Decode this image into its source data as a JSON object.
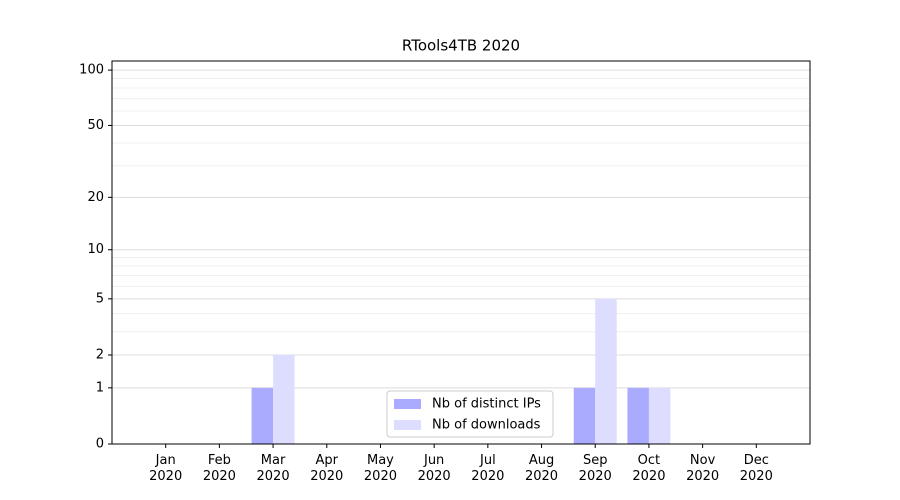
{
  "chart_data": {
    "type": "bar",
    "title": "RTools4TB 2020",
    "categories": [
      "Jan\n2020",
      "Feb\n2020",
      "Mar\n2020",
      "Apr\n2020",
      "May\n2020",
      "Jun\n2020",
      "Jul\n2020",
      "Aug\n2020",
      "Sep\n2020",
      "Oct\n2020",
      "Nov\n2020",
      "Dec\n2020"
    ],
    "series": [
      {
        "name": "Nb of distinct IPs",
        "color": "#aaaaff",
        "values": [
          0,
          0,
          1,
          0,
          0,
          0,
          0,
          0,
          1,
          1,
          0,
          0
        ]
      },
      {
        "name": "Nb of downloads",
        "color": "#ddddff",
        "values": [
          0,
          0,
          2,
          0,
          0,
          0,
          0,
          0,
          5,
          1,
          0,
          0
        ]
      }
    ],
    "yscale": "log1p",
    "ylim": [
      0,
      112
    ],
    "yticks": [
      0,
      1,
      2,
      5,
      10,
      20,
      50,
      100
    ],
    "minor_yticks": [
      3,
      4,
      6,
      7,
      8,
      9,
      30,
      40,
      60,
      70,
      80,
      90
    ],
    "grid": true,
    "legend": "lower center"
  }
}
